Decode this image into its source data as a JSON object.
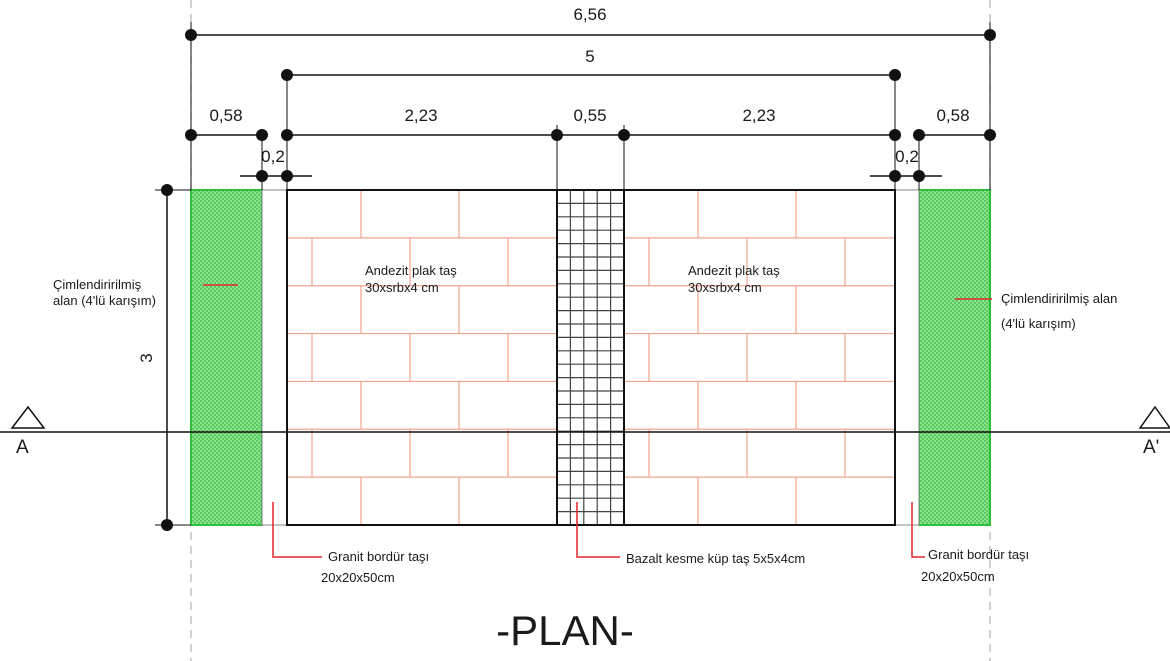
{
  "dimensions": {
    "total_width": "6,56",
    "inner_width": "5",
    "left_green": "0,58",
    "left_border": "0,2",
    "left_paving": "2,23",
    "center_strip": "0,55",
    "right_paving": "2,23",
    "right_border": "0,2",
    "right_green": "0,58",
    "height": "3"
  },
  "labels": {
    "grass_left": [
      "Çimlendiririlmiş",
      "alan (4'lü karışım)"
    ],
    "grass_right": [
      "Çimlendiririlmiş alan",
      "(4'lü karışım)"
    ],
    "paving_left": [
      "Andezit plak taş",
      "30xsrbx4 cm"
    ],
    "paving_right": [
      "Andezit plak taş",
      "30xsrbx4 cm"
    ],
    "border_left": [
      "Granit bordür taşı",
      "20x20x50cm"
    ],
    "border_right": [
      "Granit bordür taşı",
      "20x20x50cm"
    ],
    "center_strip": "Bazalt kesme küp taş 5x5x4cm"
  },
  "section_marks": {
    "left": "A",
    "right": "A'"
  },
  "title": "-PLAN-",
  "colors": {
    "grass": "#2fbf3a",
    "brick": "#f2a38e",
    "leader": "#e0262b",
    "line": "#111111",
    "dashed": "#b5b5b5"
  }
}
